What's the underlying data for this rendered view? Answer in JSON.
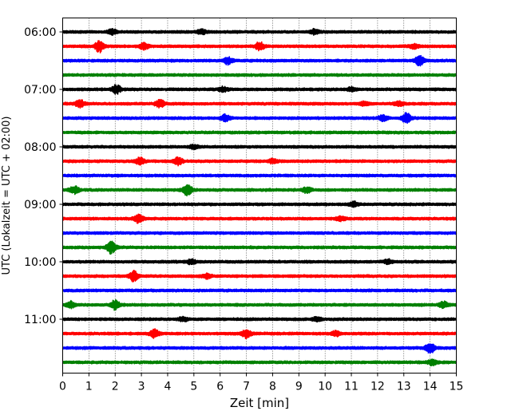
{
  "chart_data": {
    "type": "line",
    "title": "",
    "xlabel": "Zeit  [min]",
    "ylabel": "UTC (Lokalzeit = UTC + 02:00)",
    "xlim": [
      0,
      15
    ],
    "x_ticks": [
      "0",
      "1",
      "2",
      "3",
      "4",
      "5",
      "6",
      "7",
      "8",
      "9",
      "10",
      "11",
      "12",
      "13",
      "14",
      "15"
    ],
    "y_tick_labels": [
      "06:00",
      "07:00",
      "08:00",
      "09:00",
      "10:00",
      "11:00"
    ],
    "grid": "vertical-dotted",
    "row_interval_min": 15,
    "color_cycle": [
      "#000000",
      "#ff0000",
      "#0000ff",
      "#008000"
    ],
    "series": [
      {
        "start": "06:00",
        "color": "#000000",
        "events": [
          {
            "t": 1.9,
            "amp": 0.35
          },
          {
            "t": 5.3,
            "amp": 0.3
          },
          {
            "t": 9.6,
            "amp": 0.3
          }
        ]
      },
      {
        "start": "06:15",
        "color": "#ff0000",
        "events": [
          {
            "t": 1.4,
            "amp": 0.75
          },
          {
            "t": 3.1,
            "amp": 0.4
          },
          {
            "t": 7.5,
            "amp": 0.55
          },
          {
            "t": 13.4,
            "amp": 0.3
          }
        ]
      },
      {
        "start": "06:30",
        "color": "#0000ff",
        "events": [
          {
            "t": 6.3,
            "amp": 0.45
          },
          {
            "t": 13.6,
            "amp": 0.65
          }
        ]
      },
      {
        "start": "06:45",
        "color": "#008000",
        "events": []
      },
      {
        "start": "07:00",
        "color": "#000000",
        "events": [
          {
            "t": 2.05,
            "amp": 0.55
          },
          {
            "t": 6.1,
            "amp": 0.3
          },
          {
            "t": 11.0,
            "amp": 0.25
          }
        ]
      },
      {
        "start": "07:15",
        "color": "#ff0000",
        "events": [
          {
            "t": 0.65,
            "amp": 0.5
          },
          {
            "t": 3.7,
            "amp": 0.5
          },
          {
            "t": 11.5,
            "amp": 0.25
          },
          {
            "t": 12.8,
            "amp": 0.3
          }
        ]
      },
      {
        "start": "07:30",
        "color": "#0000ff",
        "events": [
          {
            "t": 6.2,
            "amp": 0.45
          },
          {
            "t": 12.2,
            "amp": 0.4
          },
          {
            "t": 13.1,
            "amp": 0.65
          }
        ]
      },
      {
        "start": "07:45",
        "color": "#008000",
        "events": []
      },
      {
        "start": "08:00",
        "color": "#000000",
        "events": [
          {
            "t": 5.0,
            "amp": 0.25
          }
        ]
      },
      {
        "start": "08:15",
        "color": "#ff0000",
        "events": [
          {
            "t": 2.95,
            "amp": 0.45
          },
          {
            "t": 4.4,
            "amp": 0.45
          },
          {
            "t": 8.0,
            "amp": 0.25
          }
        ]
      },
      {
        "start": "08:30",
        "color": "#0000ff",
        "events": []
      },
      {
        "start": "08:45",
        "color": "#008000",
        "events": [
          {
            "t": 0.45,
            "amp": 0.45
          },
          {
            "t": 4.75,
            "amp": 0.75
          },
          {
            "t": 9.3,
            "amp": 0.35
          }
        ]
      },
      {
        "start": "09:00",
        "color": "#000000",
        "events": [
          {
            "t": 11.1,
            "amp": 0.3
          }
        ]
      },
      {
        "start": "09:15",
        "color": "#ff0000",
        "events": [
          {
            "t": 2.9,
            "amp": 0.6
          },
          {
            "t": 10.6,
            "amp": 0.25
          }
        ]
      },
      {
        "start": "09:30",
        "color": "#0000ff",
        "events": []
      },
      {
        "start": "09:45",
        "color": "#008000",
        "events": [
          {
            "t": 1.85,
            "amp": 0.8
          }
        ]
      },
      {
        "start": "10:00",
        "color": "#000000",
        "events": [
          {
            "t": 4.9,
            "amp": 0.3
          },
          {
            "t": 12.4,
            "amp": 0.25
          }
        ]
      },
      {
        "start": "10:15",
        "color": "#ff0000",
        "events": [
          {
            "t": 2.7,
            "amp": 0.65
          },
          {
            "t": 5.5,
            "amp": 0.3
          }
        ]
      },
      {
        "start": "10:30",
        "color": "#0000ff",
        "events": []
      },
      {
        "start": "10:45",
        "color": "#008000",
        "events": [
          {
            "t": 0.3,
            "amp": 0.45
          },
          {
            "t": 2.0,
            "amp": 0.6
          },
          {
            "t": 14.5,
            "amp": 0.4
          }
        ]
      },
      {
        "start": "11:00",
        "color": "#000000",
        "events": [
          {
            "t": 4.6,
            "amp": 0.25
          },
          {
            "t": 9.7,
            "amp": 0.25
          }
        ]
      },
      {
        "start": "11:15",
        "color": "#ff0000",
        "events": [
          {
            "t": 3.5,
            "amp": 0.55
          },
          {
            "t": 7.0,
            "amp": 0.55
          },
          {
            "t": 10.4,
            "amp": 0.3
          }
        ]
      },
      {
        "start": "11:30",
        "color": "#0000ff",
        "events": [
          {
            "t": 14.0,
            "amp": 0.7
          }
        ]
      },
      {
        "start": "11:45",
        "color": "#008000",
        "events": [
          {
            "t": 14.1,
            "amp": 0.35
          }
        ]
      }
    ]
  }
}
